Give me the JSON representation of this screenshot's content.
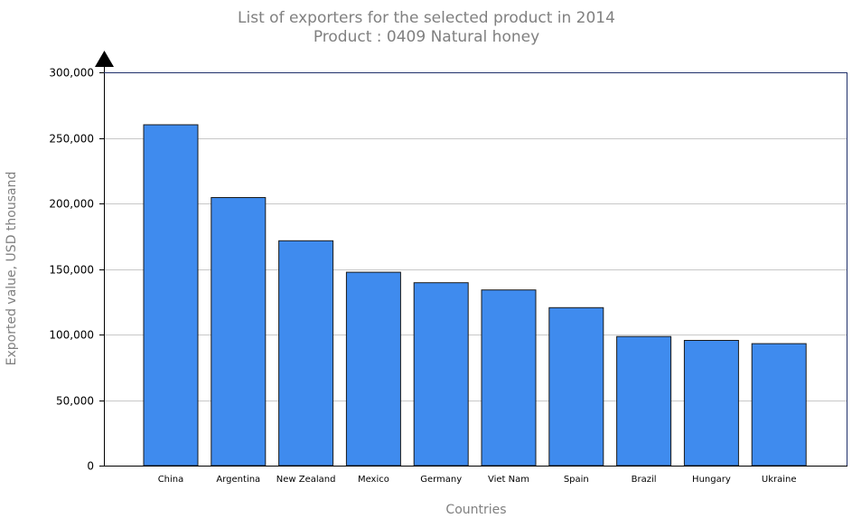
{
  "chart_data": {
    "type": "bar",
    "title": "List of exporters for the selected product in 2014",
    "subtitle": "Product : 0409 Natural honey",
    "xlabel": "Countries",
    "ylabel": "Exported value, USD thousand",
    "categories": [
      "China",
      "Argentina",
      "New Zealand",
      "Mexico",
      "Germany",
      "Viet Nam",
      "Spain",
      "Brazil",
      "Hungary",
      "Ukraine"
    ],
    "values": [
      260000,
      204500,
      171500,
      147500,
      139500,
      134000,
      120500,
      98500,
      95500,
      93000
    ],
    "ylim": [
      0,
      300000
    ],
    "yticks": [
      0,
      50000,
      100000,
      150000,
      200000,
      250000,
      300000
    ],
    "ytick_labels": [
      "0",
      "50,000",
      "100,000",
      "150,000",
      "200,000",
      "250,000",
      "300,000"
    ],
    "grid": true,
    "legend": "none",
    "colors": {
      "bar": "#3f8bee",
      "bar_stroke": "#1a1a1a",
      "grid": "#c8c8c8",
      "axis": "#000000",
      "text_muted": "#808080"
    }
  }
}
